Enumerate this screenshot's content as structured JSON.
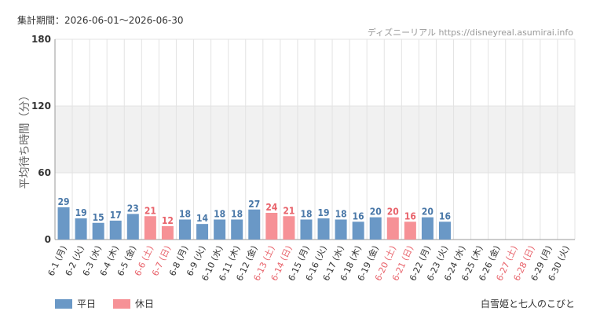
{
  "header": {
    "period": "集計期間：2026-06-01～2026-06-30",
    "site": "ディズニーリアル https://disneyreal.asumirai.info"
  },
  "footer": {
    "attraction": "白雪姫と七人のこびと"
  },
  "legend": {
    "weekday": "平日",
    "holiday": "休日"
  },
  "colors": {
    "weekday": "#6a98c6",
    "holiday": "#f69196",
    "weekday_text": "#4a78a8",
    "holiday_text": "#e8626a",
    "band": "#f1f1f1",
    "grid": "#e3e3e3"
  },
  "chart_data": {
    "type": "bar",
    "ylabel": "平均待ち時間（分）",
    "ylim": [
      0,
      180
    ],
    "yticks": [
      0,
      60,
      120,
      180
    ],
    "categories": [
      "6-1 (月)",
      "6-2 (火)",
      "6-3 (水)",
      "6-4 (木)",
      "6-5 (金)",
      "6-6 (土)",
      "6-7 (日)",
      "6-8 (月)",
      "6-9 (火)",
      "6-10 (水)",
      "6-11 (木)",
      "6-12 (金)",
      "6-13 (土)",
      "6-14 (日)",
      "6-15 (月)",
      "6-16 (火)",
      "6-17 (水)",
      "6-18 (木)",
      "6-19 (金)",
      "6-20 (土)",
      "6-21 (日)",
      "6-22 (月)",
      "6-23 (火)",
      "6-24 (水)",
      "6-25 (木)",
      "6-26 (金)",
      "6-27 (土)",
      "6-28 (日)",
      "6-29 (月)",
      "6-30 (火)"
    ],
    "values": [
      29,
      19,
      15,
      17,
      23,
      21,
      12,
      18,
      14,
      18,
      18,
      27,
      24,
      21,
      18,
      19,
      18,
      16,
      20,
      20,
      16,
      20,
      16,
      null,
      null,
      null,
      null,
      null,
      null,
      null
    ],
    "holiday": [
      false,
      false,
      false,
      false,
      false,
      true,
      true,
      false,
      false,
      false,
      false,
      false,
      true,
      true,
      false,
      false,
      false,
      false,
      false,
      true,
      true,
      false,
      false,
      false,
      false,
      false,
      true,
      true,
      false,
      false
    ],
    "series": [
      {
        "name": "平日"
      },
      {
        "name": "休日"
      }
    ]
  }
}
